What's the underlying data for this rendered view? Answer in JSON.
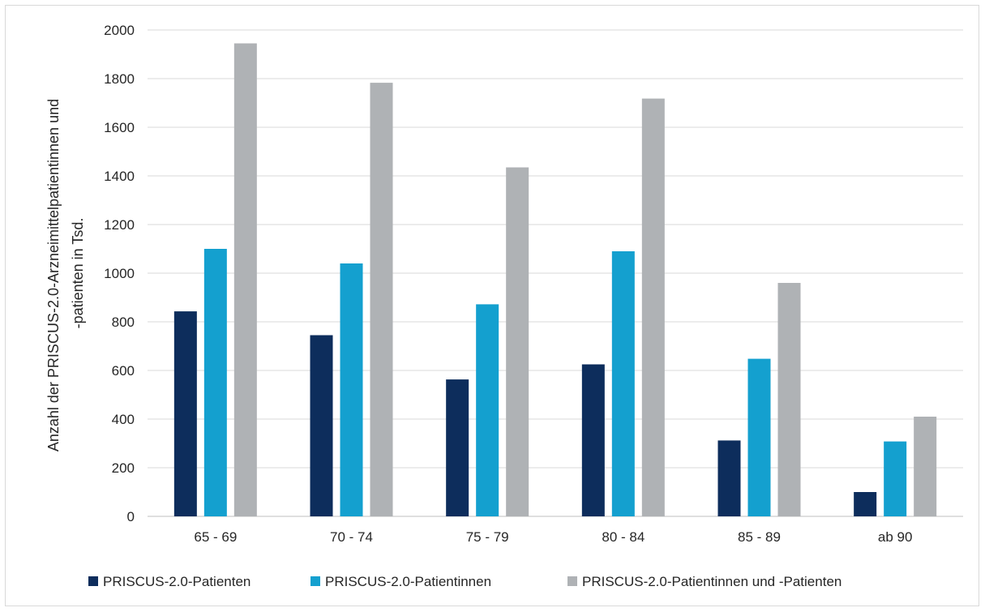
{
  "chart_data": {
    "type": "bar",
    "title": "",
    "xlabel": "",
    "ylabel_lines": [
      "Anzahl der PRISCUS-2.0-Arzneimittelpatientinnen und",
      "-patienten in Tsd."
    ],
    "categories": [
      "65 - 69",
      "70 - 74",
      "75 - 79",
      "80 - 84",
      "85 - 89",
      "ab 90"
    ],
    "ylim": [
      0,
      2000
    ],
    "yticks": [
      0,
      200,
      400,
      600,
      800,
      1000,
      1200,
      1400,
      1600,
      1800,
      2000
    ],
    "grid": true,
    "legend_position": "bottom",
    "series": [
      {
        "name": "PRISCUS-2.0-Patienten",
        "color": "#0d2d5c",
        "values": [
          843,
          745,
          563,
          625,
          312,
          100
        ]
      },
      {
        "name": "PRISCUS-2.0-Patientinnen",
        "color": "#14a0cf",
        "values": [
          1100,
          1040,
          872,
          1090,
          648,
          308
        ]
      },
      {
        "name": "PRISCUS-2.0-Patientinnen und -Patienten",
        "color": "#afb2b5",
        "values": [
          1945,
          1783,
          1435,
          1718,
          960,
          410
        ]
      }
    ]
  }
}
